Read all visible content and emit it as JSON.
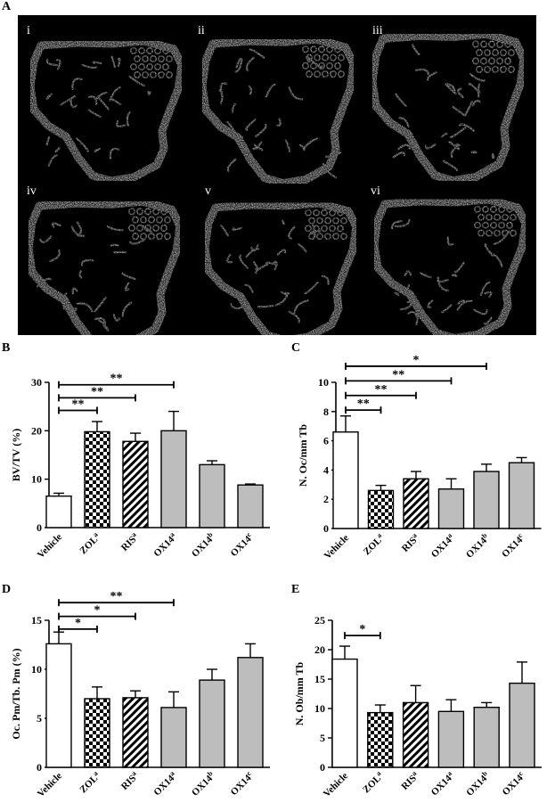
{
  "panels": {
    "a_letter": "A",
    "b_letter": "B",
    "c_letter": "C",
    "d_letter": "D",
    "e_letter": "E",
    "micro_ct_labels": [
      "i",
      "ii",
      "iii",
      "iv",
      "v",
      "vi"
    ]
  },
  "colors": {
    "ink": "#000000",
    "bar_gray": "#bdbdbd",
    "bar_white": "#ffffff",
    "scan_bg": "#000000",
    "bone": "#d8d8d8"
  },
  "chart_data": [
    {
      "id": "B",
      "type": "bar",
      "categories": [
        "Vehicle",
        "ZOL",
        "RIS",
        "OX14",
        "OX14",
        "OX14"
      ],
      "superscripts": [
        "",
        "a",
        "a",
        "a",
        "b",
        "c"
      ],
      "patterns": [
        "white",
        "checker",
        "hatch",
        "gray",
        "gray",
        "gray"
      ],
      "values": [
        6.5,
        19.8,
        17.8,
        20.0,
        13.0,
        8.8
      ],
      "errors": [
        0.6,
        2.1,
        1.7,
        4.0,
        0.8,
        0.2
      ],
      "ylabel": "BV/TV (%)",
      "ylim": [
        0,
        30
      ],
      "yticks": [
        0,
        10,
        20,
        30
      ],
      "comparisons": [
        {
          "to": 1,
          "label": "**",
          "y": 24.2
        },
        {
          "to": 2,
          "label": "**",
          "y": 26.8
        },
        {
          "to": 3,
          "label": "**",
          "y": 29.5
        }
      ]
    },
    {
      "id": "C",
      "type": "bar",
      "categories": [
        "Vehicle",
        "ZOL",
        "RIS",
        "OX14",
        "OX14",
        "OX14"
      ],
      "superscripts": [
        "",
        "a",
        "a",
        "a",
        "b",
        "c"
      ],
      "patterns": [
        "white",
        "checker",
        "hatch",
        "gray",
        "gray",
        "gray"
      ],
      "values": [
        6.6,
        2.6,
        3.4,
        2.7,
        3.9,
        4.5
      ],
      "errors": [
        1.1,
        0.35,
        0.5,
        0.7,
        0.5,
        0.35
      ],
      "ylabel": "N. Oc/mm Tb",
      "ylim": [
        0,
        10
      ],
      "yticks": [
        0,
        2,
        4,
        6,
        8,
        10
      ],
      "comparisons": [
        {
          "to": 1,
          "label": "**",
          "y": 8.1
        },
        {
          "to": 2,
          "label": "**",
          "y": 9.1
        },
        {
          "to": 3,
          "label": "**",
          "y": 10.1
        },
        {
          "to": 4,
          "label": "*",
          "y": 11.1
        }
      ]
    },
    {
      "id": "D",
      "type": "bar",
      "categories": [
        "Vehicle",
        "ZOL",
        "RIS",
        "OX14",
        "OX14",
        "OX14"
      ],
      "superscripts": [
        "",
        "a",
        "a",
        "a",
        "b",
        "c"
      ],
      "patterns": [
        "white",
        "checker",
        "hatch",
        "gray",
        "gray",
        "gray"
      ],
      "values": [
        12.6,
        7.0,
        7.1,
        6.1,
        8.9,
        11.2
      ],
      "errors": [
        1.2,
        1.2,
        0.7,
        1.6,
        1.1,
        1.4
      ],
      "ylabel": "Oc. Pm/Tb. Pm (%)",
      "ylim": [
        0,
        15
      ],
      "yticks": [
        0,
        5,
        10,
        15
      ],
      "comparisons": [
        {
          "to": 1,
          "label": "*",
          "y": 14.1
        },
        {
          "to": 2,
          "label": "*",
          "y": 15.4
        },
        {
          "to": 3,
          "label": "**",
          "y": 16.8
        }
      ]
    },
    {
      "id": "E",
      "type": "bar",
      "categories": [
        "Vehicle",
        "ZOL",
        "RIS",
        "OX14",
        "OX14",
        "OX14"
      ],
      "superscripts": [
        "",
        "a",
        "a",
        "a",
        "b",
        "c"
      ],
      "patterns": [
        "white",
        "checker",
        "hatch",
        "gray",
        "gray",
        "gray"
      ],
      "values": [
        18.4,
        9.3,
        11.0,
        9.5,
        10.2,
        14.3
      ],
      "errors": [
        2.2,
        1.3,
        2.9,
        2.0,
        0.8,
        3.6
      ],
      "ylabel": "N. Ob/mm Tb",
      "ylim": [
        0,
        25
      ],
      "yticks": [
        0,
        5,
        10,
        15,
        20,
        25
      ],
      "comparisons": [
        {
          "to": 1,
          "label": "*",
          "y": 22.4
        }
      ]
    }
  ]
}
